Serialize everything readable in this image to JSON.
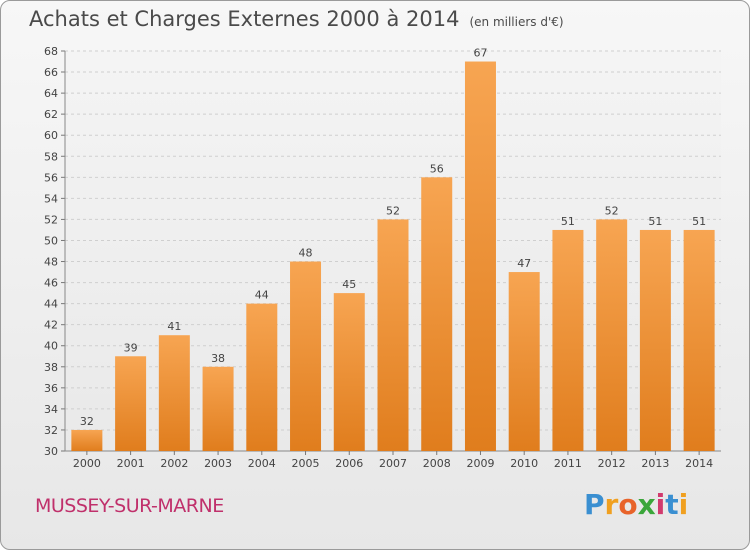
{
  "header": {
    "title": "Achats et Charges Externes 2000 à 2014",
    "unit": "(en milliers d'€)"
  },
  "footer": {
    "city": "MUSSEY-SUR-MARNE",
    "logo": "Proxiti"
  },
  "colors": {
    "bar_top": "#f7a552",
    "bar_bottom": "#e07d1d",
    "city": "#c0306b"
  },
  "chart_data": {
    "type": "bar",
    "title": "Achats et Charges Externes 2000 à 2014",
    "subtitle": "(en milliers d'€)",
    "categories": [
      "2000",
      "2001",
      "2002",
      "2003",
      "2004",
      "2005",
      "2006",
      "2007",
      "2008",
      "2009",
      "2010",
      "2011",
      "2012",
      "2013",
      "2014"
    ],
    "values": [
      32,
      39,
      41,
      38,
      44,
      48,
      45,
      52,
      56,
      67,
      47,
      51,
      52,
      51,
      51
    ],
    "ylim": [
      30,
      68
    ],
    "yticks": [
      30,
      32,
      34,
      36,
      38,
      40,
      42,
      44,
      46,
      48,
      50,
      52,
      54,
      56,
      58,
      60,
      62,
      64,
      66,
      68
    ],
    "grid": true,
    "xlabel": "",
    "ylabel": ""
  }
}
